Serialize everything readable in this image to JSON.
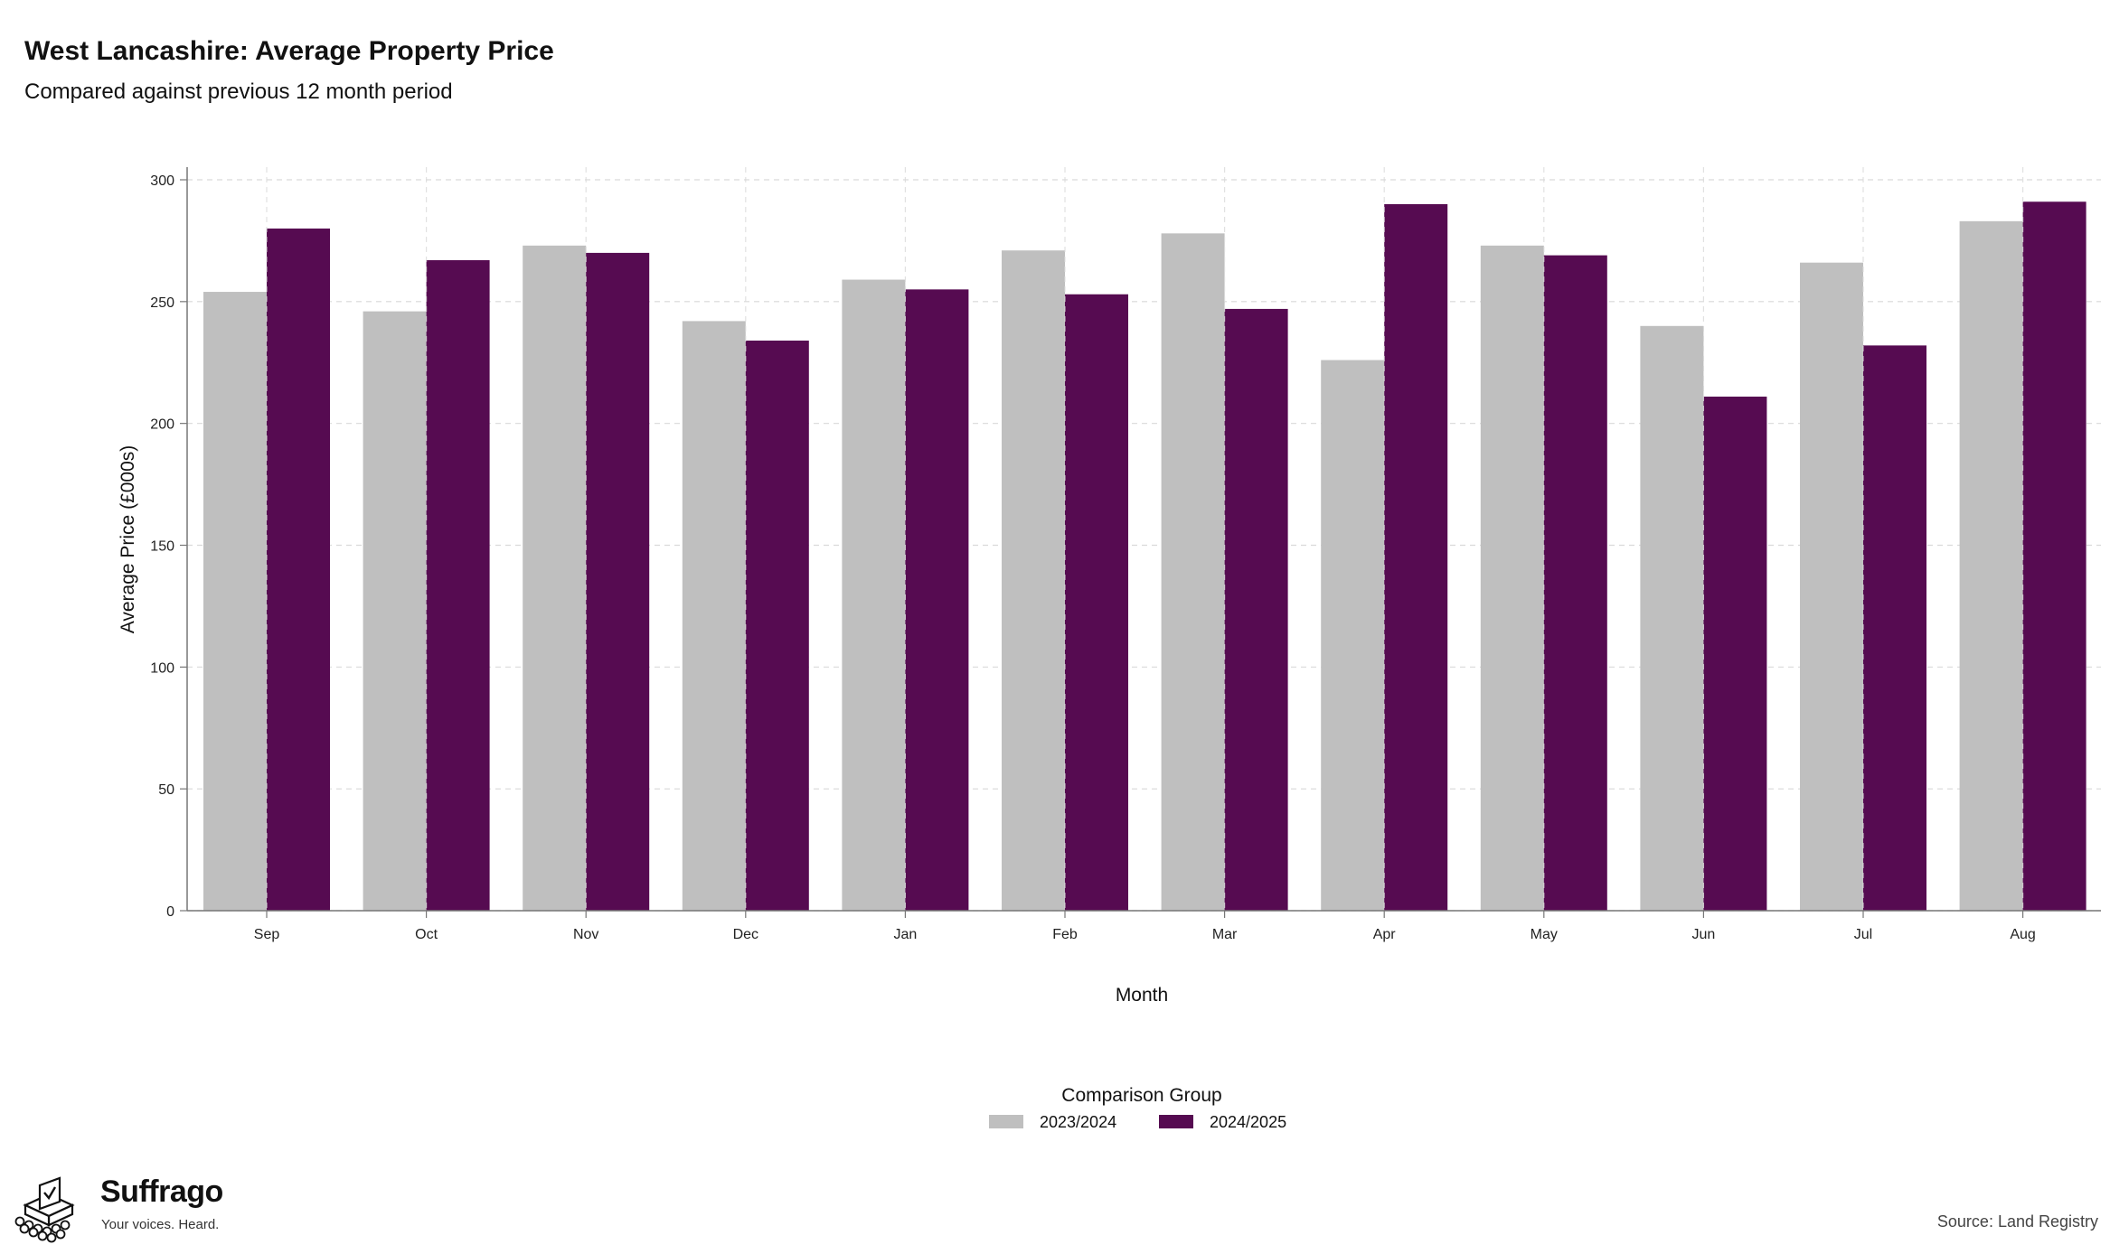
{
  "title": "West Lancashire: Average Property Price",
  "subtitle": "Compared against previous 12 month period",
  "chart_data": {
    "type": "bar",
    "categories": [
      "Sep",
      "Oct",
      "Nov",
      "Dec",
      "Jan",
      "Feb",
      "Mar",
      "Apr",
      "May",
      "Jun",
      "Jul",
      "Aug"
    ],
    "series": [
      {
        "name": "2023/2024",
        "color": "#bfbfbf",
        "values": [
          254,
          246,
          273,
          242,
          259,
          271,
          278,
          226,
          273,
          240,
          266,
          283
        ]
      },
      {
        "name": "2024/2025",
        "color": "#560b51",
        "values": [
          280,
          267,
          270,
          234,
          255,
          253,
          247,
          290,
          269,
          211,
          232,
          291
        ]
      }
    ],
    "xlabel": "Month",
    "ylabel": "Average Price (£000s)",
    "ylim": [
      0,
      300
    ],
    "yticks": [
      0,
      50,
      100,
      150,
      200,
      250,
      300
    ],
    "grid": true,
    "legend": {
      "title": "Comparison Group",
      "position": "bottom"
    }
  },
  "branding": {
    "name": "Suffrago",
    "tagline": "Your voices. Heard.",
    "logo_icon": "ballot-box-icon"
  },
  "source": "Source: Land Registry"
}
